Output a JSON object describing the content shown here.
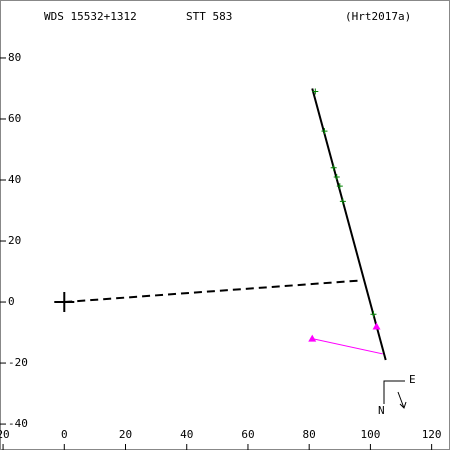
{
  "chart_data": {
    "type": "scatter",
    "texts": [
      "WDS 15532+1312",
      "STT 583",
      "(Hrt2017a)"
    ],
    "compass": [
      "E",
      "N"
    ],
    "xlim": [
      -21,
      126
    ],
    "ylim": [
      -48.5,
      99
    ],
    "xticks": [
      {
        "value": -20,
        "label": "20"
      },
      0,
      20,
      40,
      60,
      80,
      100,
      120
    ],
    "yticks": [
      80,
      60,
      40,
      20,
      0,
      -20,
      -40
    ],
    "series": [
      {
        "style": "line",
        "color": "#000000",
        "x": [
          81,
          105
        ],
        "values": [
          70,
          -19
        ]
      },
      {
        "style": "dashed",
        "color": "#000000",
        "x": [
          0,
          96
        ],
        "values": [
          0,
          7
        ]
      },
      {
        "style": "line",
        "color": "#ff00ff",
        "x": [
          81,
          104
        ],
        "values": [
          -12,
          -17
        ]
      },
      {
        "style": "plus",
        "color": "#008000",
        "x": [
          82,
          85,
          88,
          89,
          90,
          91,
          101
        ],
        "values": [
          69,
          56,
          44,
          41,
          38,
          33,
          -4
        ]
      },
      {
        "style": "triangle",
        "color": "#ff00ff",
        "x": [
          81,
          102
        ],
        "values": [
          -12,
          -8
        ]
      },
      {
        "style": "cross",
        "color": "#000000",
        "x": [
          0
        ],
        "values": [
          0
        ]
      }
    ]
  }
}
